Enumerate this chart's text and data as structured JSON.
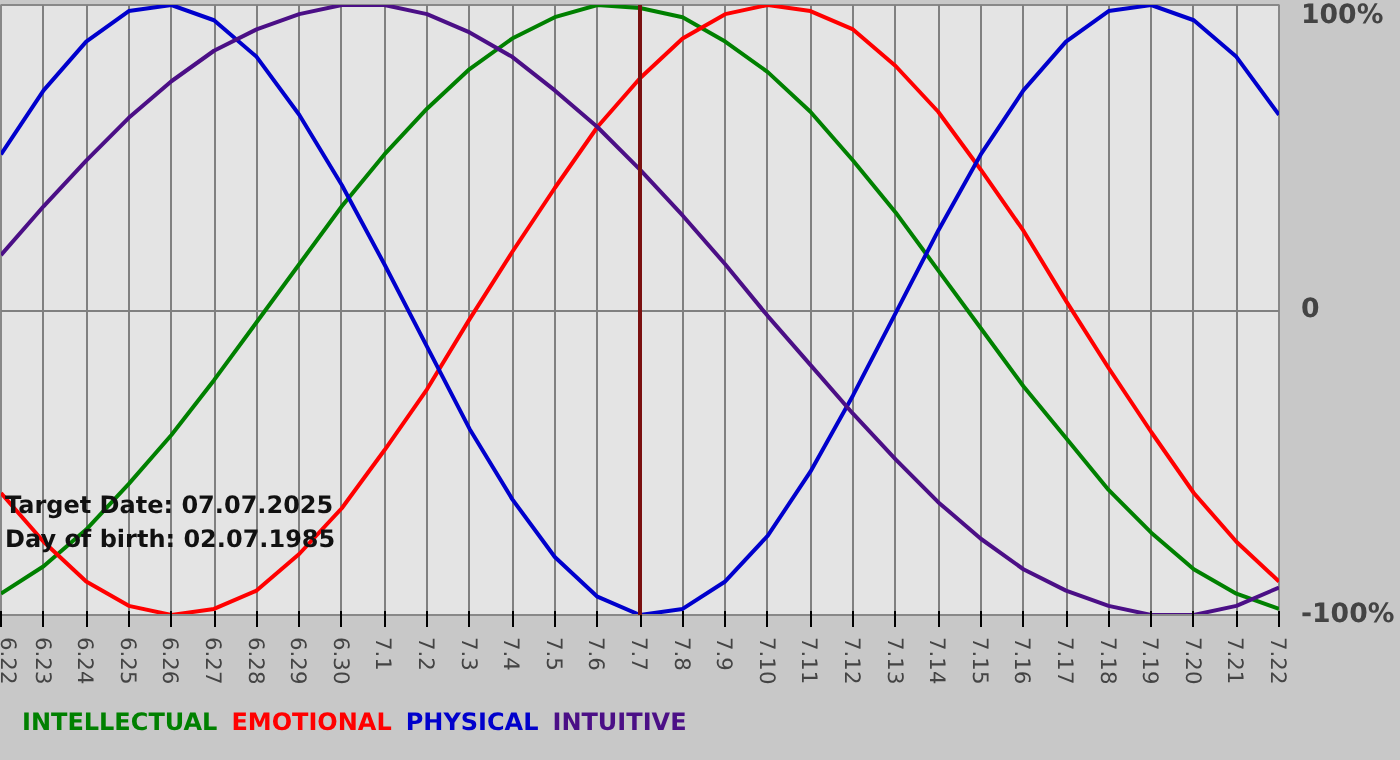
{
  "chart_data": {
    "type": "line",
    "categories": [
      "6.22",
      "6.23",
      "6.24",
      "6.25",
      "6.26",
      "6.27",
      "6.28",
      "6.29",
      "6.30",
      "7.1",
      "7.2",
      "7.3",
      "7.4",
      "7.5",
      "7.6",
      "7.7",
      "7.8",
      "7.9",
      "7.10",
      "7.11",
      "7.12",
      "7.13",
      "7.14",
      "7.15",
      "7.16",
      "7.17",
      "7.18",
      "7.19",
      "7.20",
      "7.21",
      "7.22"
    ],
    "series": [
      {
        "name": "INTELLECTUAL",
        "color": "#008000",
        "values": [
          -0.93,
          -0.84,
          -0.72,
          -0.57,
          -0.41,
          -0.23,
          -0.04,
          0.15,
          0.34,
          0.51,
          0.66,
          0.79,
          0.89,
          0.96,
          1.0,
          0.99,
          0.96,
          0.88,
          0.78,
          0.65,
          0.49,
          0.32,
          0.13,
          -0.06,
          -0.25,
          -0.42,
          -0.59,
          -0.73,
          -0.85,
          -0.93,
          -0.98
        ]
      },
      {
        "name": "EMOTIONAL",
        "color": "#ff0000",
        "values": [
          -0.6,
          -0.76,
          -0.89,
          -0.97,
          -1.0,
          -0.98,
          -0.92,
          -0.8,
          -0.65,
          -0.46,
          -0.26,
          -0.03,
          0.19,
          0.4,
          0.6,
          0.76,
          0.89,
          0.97,
          1.0,
          0.98,
          0.92,
          0.8,
          0.65,
          0.46,
          0.26,
          0.03,
          -0.19,
          -0.4,
          -0.6,
          -0.76,
          -0.89
        ]
      },
      {
        "name": "PHYSICAL",
        "color": "#0000cc",
        "values": [
          0.51,
          0.72,
          0.88,
          0.98,
          1.0,
          0.95,
          0.83,
          0.64,
          0.41,
          0.15,
          -0.12,
          -0.39,
          -0.62,
          -0.81,
          -0.94,
          -1.0,
          -0.98,
          -0.89,
          -0.74,
          -0.53,
          -0.28,
          -0.01,
          0.26,
          0.51,
          0.72,
          0.88,
          0.98,
          1.0,
          0.95,
          0.83,
          0.64
        ]
      },
      {
        "name": "INTUITIVE",
        "color": "#4b0f86",
        "values": [
          0.18,
          0.34,
          0.49,
          0.63,
          0.75,
          0.85,
          0.92,
          0.97,
          1.0,
          1.0,
          0.97,
          0.91,
          0.83,
          0.72,
          0.6,
          0.46,
          0.31,
          0.15,
          -0.02,
          -0.18,
          -0.34,
          -0.49,
          -0.63,
          -0.75,
          -0.85,
          -0.92,
          -0.97,
          -1.0,
          -1.0,
          -0.97,
          -0.91
        ]
      }
    ],
    "ylim": [
      -1,
      1
    ],
    "yticks": [
      {
        "value": -1,
        "label": "-100%"
      },
      {
        "value": 0,
        "label": "0"
      },
      {
        "value": 1,
        "label": "100%"
      }
    ],
    "grid": true,
    "legend": "bottom",
    "line_style": "solid",
    "ref_lines": [
      {
        "axis": "x",
        "value": "7.7",
        "color": "#7a1010"
      }
    ],
    "annotations": [
      "Target Date: 07.07.2025",
      "Day of birth: 02.07.1985"
    ]
  }
}
